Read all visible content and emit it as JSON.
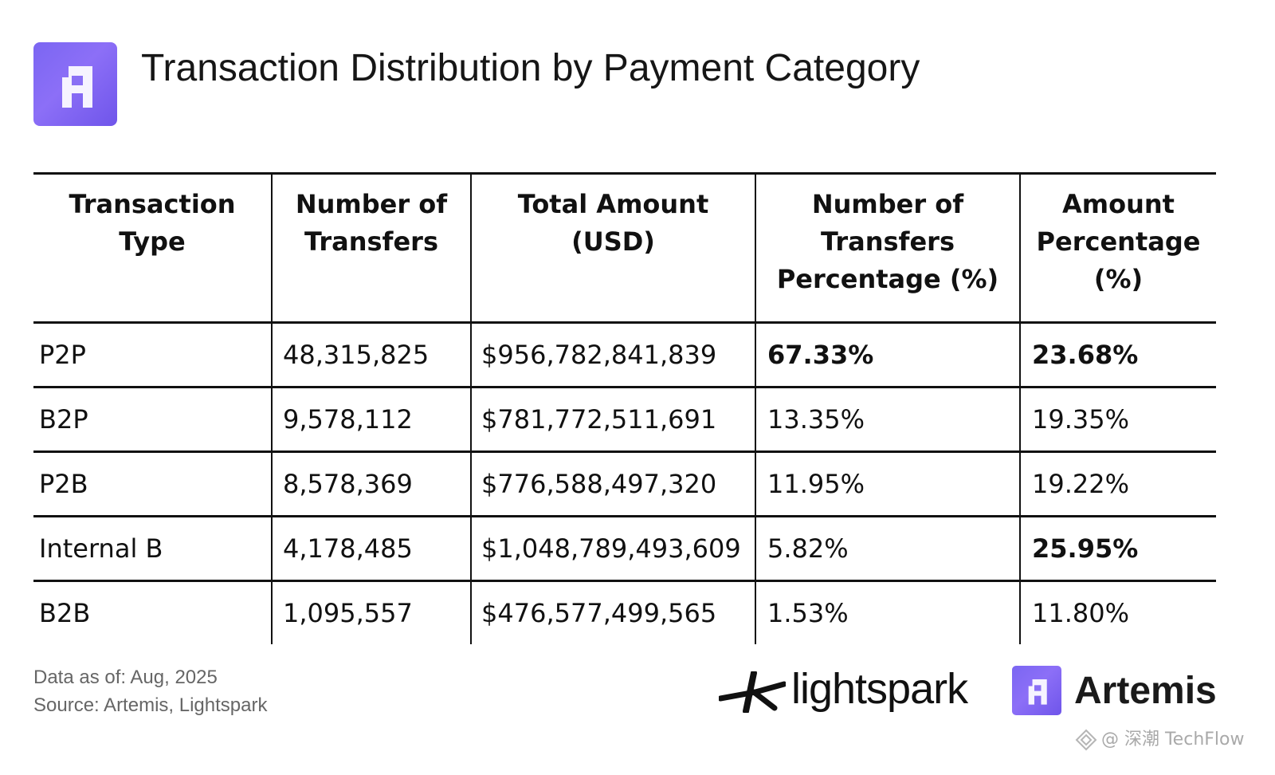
{
  "header": {
    "title": "Transaction Distribution by Payment Category"
  },
  "table": {
    "columns": [
      "Transaction Type",
      "Number of Transfers",
      "Total Amount (USD)",
      "Number of Transfers Percentage (%)",
      "Amount Percentage (%)"
    ],
    "rows": [
      {
        "type": "P2P",
        "transfers": "48,315,825",
        "amount": "$956,782,841,839",
        "transfers_pct": "67.33%",
        "amount_pct": "23.68%"
      },
      {
        "type": "B2P",
        "transfers": "9,578,112",
        "amount": "$781,772,511,691",
        "transfers_pct": "13.35%",
        "amount_pct": "19.35%"
      },
      {
        "type": "P2B",
        "transfers": "8,578,369",
        "amount": "$776,588,497,320",
        "transfers_pct": "11.95%",
        "amount_pct": "19.22%"
      },
      {
        "type": "Internal B",
        "transfers": "4,178,485",
        "amount": "$1,048,789,493,609",
        "transfers_pct": "5.82%",
        "amount_pct": "25.95%"
      },
      {
        "type": "B2B",
        "transfers": "1,095,557",
        "amount": "$476,577,499,565",
        "transfers_pct": "1.53%",
        "amount_pct": "11.80%"
      }
    ],
    "bold_cells": [
      "P2P.transfers_pct",
      "P2P.amount_pct",
      "Internal B.amount_pct"
    ]
  },
  "footer": {
    "data_as_of": "Data as of: Aug, 2025",
    "source": "Source: Artemis, Lightspark",
    "lightspark_wordmark": "lightspark",
    "artemis_wordmark": "Artemis",
    "watermark": "@ 深潮 TechFlow"
  },
  "icons": {
    "header_logo": "artemis-logo-icon",
    "footer_logos": [
      "lightspark-logo-icon",
      "artemis-logo-icon"
    ],
    "watermark": "watermark-logo-icon"
  },
  "colors": {
    "brand_purple": "#7b66f2",
    "text": "#111111",
    "footnote": "#666666",
    "watermark": "#a9a9a9"
  }
}
